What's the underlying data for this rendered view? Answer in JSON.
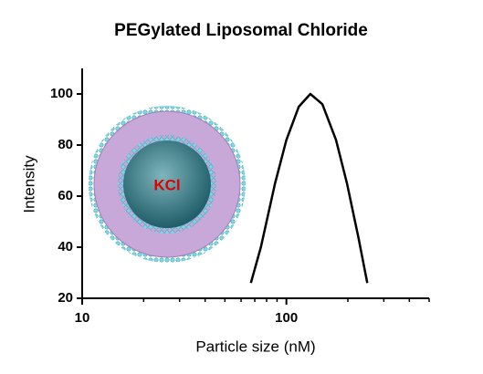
{
  "chart_data": {
    "type": "line",
    "title": "PEGylated Liposomal Chloride",
    "x_label": "Particle size (nM)",
    "y_label": "Intensity",
    "annotation": "KCl",
    "x": [
      67,
      75,
      88,
      100,
      115,
      131,
      150,
      175,
      198,
      225,
      249
    ],
    "series": [
      {
        "name": "Intensity",
        "color": "#000000",
        "values": [
          26,
          40,
          65,
          82,
          95,
          100,
          96,
          82,
          65,
          44,
          26
        ]
      }
    ],
    "xlim": [
      10,
      500
    ],
    "xticks": [
      10,
      100
    ],
    "xscale": "log",
    "x_minor_ticks": true,
    "ylim": [
      20,
      110
    ],
    "yticks": [
      20,
      40,
      60,
      80,
      100
    ],
    "grid": false
  }
}
